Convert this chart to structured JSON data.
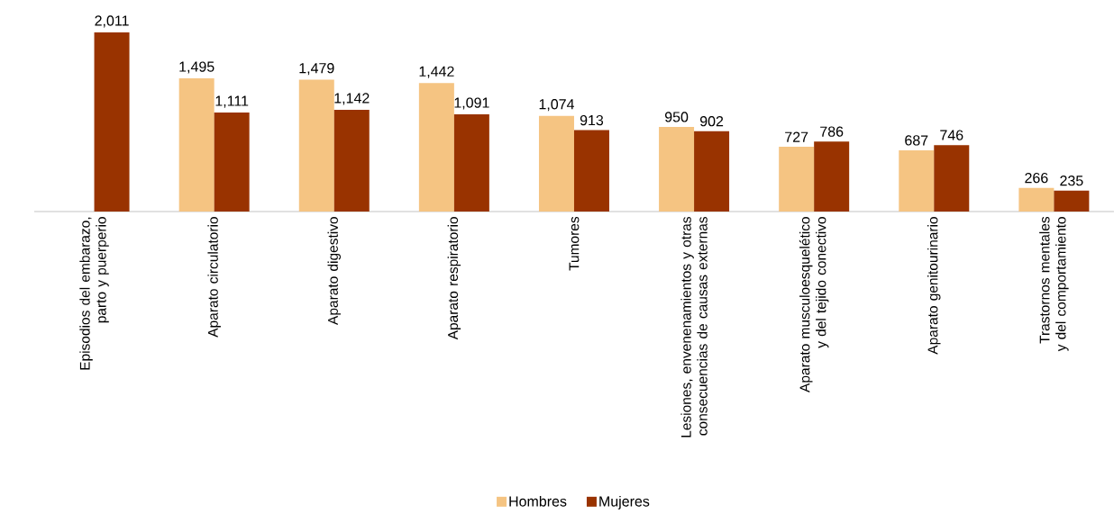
{
  "chart_data": {
    "type": "bar",
    "categories": [
      "Episodios del embarazo, parto y puerperio",
      "Aparato circulatorio",
      "Aparato digestivo",
      "Aparato respiratorio",
      "Tumores",
      "Lesiones, envenenamientos y otras consecuencias de causas externas",
      "Aparato musculoesquelético y del tejido conectivo",
      "Aparato genitourinario",
      "Trastornos mentales y del comportamiento"
    ],
    "series": [
      {
        "name": "Hombres",
        "color": "#f5c482",
        "values": [
          null,
          1495,
          1479,
          1442,
          1074,
          950,
          727,
          687,
          266
        ],
        "value_labels": [
          null,
          "1,495",
          "1,479",
          "1,442",
          "1,074",
          "950",
          "727",
          "687",
          "266"
        ]
      },
      {
        "name": "Mujeres",
        "color": "#993300",
        "values": [
          2011,
          1111,
          1142,
          1091,
          913,
          902,
          786,
          746,
          235
        ],
        "value_labels": [
          "2,011",
          "1,111",
          "1,142",
          "1,091",
          "913",
          "902",
          "786",
          "746",
          "235"
        ]
      }
    ],
    "legend": "bottom"
  }
}
